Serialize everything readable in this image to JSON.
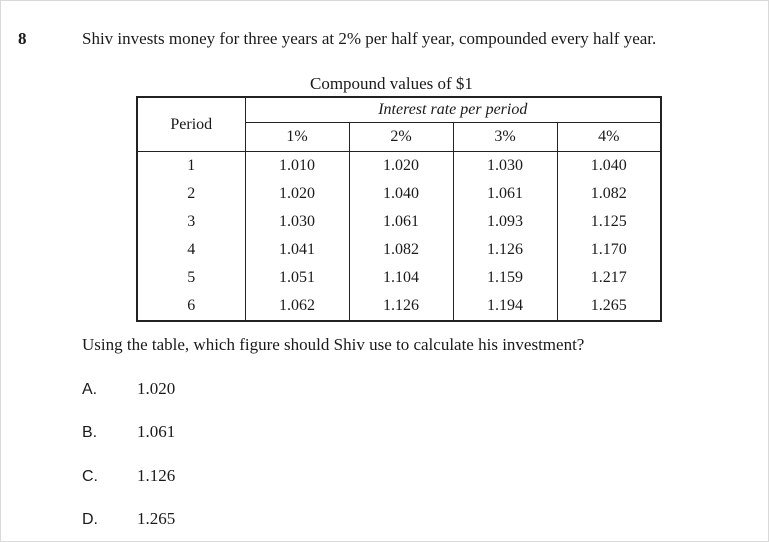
{
  "question": {
    "number": "8",
    "text": "Shiv invests money for three years at 2% per half year, compounded every half year."
  },
  "table": {
    "caption": "Compound values of $1",
    "period_header": "Period",
    "rate_group_header": "Interest rate per period",
    "rate_headers": [
      "1%",
      "2%",
      "3%",
      "4%"
    ],
    "rows": [
      {
        "period": "1",
        "values": [
          "1.010",
          "1.020",
          "1.030",
          "1.040"
        ]
      },
      {
        "period": "2",
        "values": [
          "1.020",
          "1.040",
          "1.061",
          "1.082"
        ]
      },
      {
        "period": "3",
        "values": [
          "1.030",
          "1.061",
          "1.093",
          "1.125"
        ]
      },
      {
        "period": "4",
        "values": [
          "1.041",
          "1.082",
          "1.126",
          "1.170"
        ]
      },
      {
        "period": "5",
        "values": [
          "1.051",
          "1.104",
          "1.159",
          "1.217"
        ]
      },
      {
        "period": "6",
        "values": [
          "1.062",
          "1.126",
          "1.194",
          "1.265"
        ]
      }
    ]
  },
  "prompt": "Using the table, which figure should Shiv use to calculate his investment?",
  "options": [
    {
      "letter": "A.",
      "value": "1.020"
    },
    {
      "letter": "B.",
      "value": "1.061"
    },
    {
      "letter": "C.",
      "value": "1.126"
    },
    {
      "letter": "D.",
      "value": "1.265"
    }
  ]
}
